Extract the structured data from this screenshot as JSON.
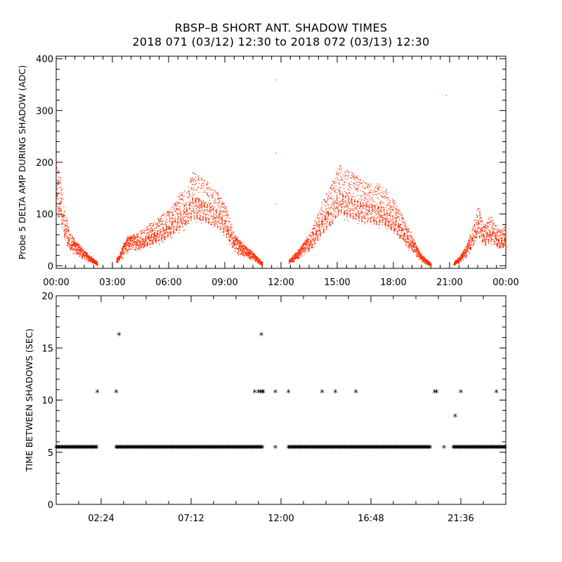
{
  "title": {
    "line1": "RBSP–B SHORT ANT. SHADOW TIMES",
    "line2": "2018 071 (03/12) 12:30 to 2018 072 (03/13) 12:30"
  },
  "colors": {
    "top_points": "#ff2a00",
    "bottom_points": "#000000",
    "axes": "#000000"
  },
  "chart_data": [
    {
      "type": "scatter",
      "ylabel": "Probe 5 DELTA AMP DURING SHADOW (ADC)",
      "xlabel": "",
      "xlim_hours": [
        0,
        24
      ],
      "ylim": [
        -5,
        405
      ],
      "x_tick_labels": [
        "00:00",
        "03:00",
        "06:00",
        "09:00",
        "12:00",
        "15:00",
        "18:00",
        "21:00",
        "00:00"
      ],
      "x_tick_hours": [
        0,
        3,
        6,
        9,
        12,
        15,
        18,
        21,
        24
      ],
      "y_ticks": [
        0,
        100,
        200,
        300,
        400
      ],
      "y_tick_labels": [
        "0",
        "100",
        "200",
        "300",
        "400"
      ],
      "point_color": "#ff2a00",
      "series": [
        {
          "description_points_hours_values": "band envelope samples",
          "points": [
            [
              0.0,
              205
            ],
            [
              0.15,
              180
            ],
            [
              0.3,
              150
            ],
            [
              0.45,
              110
            ],
            [
              0.6,
              80
            ],
            [
              0.8,
              60
            ],
            [
              1.0,
              48
            ],
            [
              1.2,
              40
            ],
            [
              1.4,
              32
            ],
            [
              1.6,
              25
            ],
            [
              1.8,
              18
            ],
            [
              2.0,
              12
            ],
            [
              2.2,
              5
            ],
            [
              3.2,
              12
            ],
            [
              3.4,
              25
            ],
            [
              3.6,
              45
            ],
            [
              3.8,
              55
            ],
            [
              4.2,
              60
            ],
            [
              4.6,
              70
            ],
            [
              5.0,
              80
            ],
            [
              5.5,
              95
            ],
            [
              6.0,
              110
            ],
            [
              6.5,
              135
            ],
            [
              7.0,
              160
            ],
            [
              7.3,
              185
            ],
            [
              7.6,
              175
            ],
            [
              8.0,
              165
            ],
            [
              8.5,
              150
            ],
            [
              9.0,
              120
            ],
            [
              9.5,
              60
            ],
            [
              10.0,
              40
            ],
            [
              10.5,
              25
            ],
            [
              11.0,
              5
            ],
            [
              12.4,
              10
            ],
            [
              12.8,
              25
            ],
            [
              13.2,
              45
            ],
            [
              13.6,
              70
            ],
            [
              14.0,
              105
            ],
            [
              14.4,
              140
            ],
            [
              14.8,
              170
            ],
            [
              15.1,
              200
            ],
            [
              15.4,
              190
            ],
            [
              16.0,
              175
            ],
            [
              16.5,
              165
            ],
            [
              17.0,
              160
            ],
            [
              17.5,
              155
            ],
            [
              18.0,
              130
            ],
            [
              18.5,
              95
            ],
            [
              19.0,
              55
            ],
            [
              19.5,
              20
            ],
            [
              20.0,
              3
            ],
            [
              21.2,
              5
            ],
            [
              21.6,
              20
            ],
            [
              22.0,
              50
            ],
            [
              22.3,
              90
            ],
            [
              22.5,
              120
            ],
            [
              22.8,
              80
            ],
            [
              23.2,
              95
            ],
            [
              23.6,
              70
            ],
            [
              24.0,
              75
            ]
          ]
        }
      ]
    },
    {
      "type": "scatter",
      "ylabel": "TIME BETWEEN SHADOWS (SEC)",
      "xlabel": "",
      "xlim_hours": [
        0,
        24
      ],
      "ylim": [
        0,
        20
      ],
      "x_tick_labels": [
        "02:24",
        "07:12",
        "12:00",
        "16:48",
        "21:36"
      ],
      "x_tick_hours": [
        2.4,
        7.2,
        12.0,
        16.8,
        21.6
      ],
      "y_ticks": [
        0,
        5,
        10,
        15,
        20
      ],
      "y_tick_labels": [
        "0",
        "5",
        "10",
        "15",
        "20"
      ],
      "point_color": "#000000",
      "marker": "*",
      "baseline_value": 5.4,
      "baseline_segments_hours": [
        [
          0.0,
          2.2
        ],
        [
          3.2,
          11.0
        ],
        [
          12.4,
          20.0
        ],
        [
          21.2,
          24.0
        ]
      ],
      "outliers": [
        [
          2.2,
          10.7
        ],
        [
          3.2,
          10.7
        ],
        [
          3.35,
          16.2
        ],
        [
          10.6,
          10.7
        ],
        [
          10.8,
          10.7
        ],
        [
          10.9,
          10.7
        ],
        [
          11.0,
          10.7
        ],
        [
          11.05,
          10.7
        ],
        [
          10.95,
          16.2
        ],
        [
          11.7,
          10.7
        ],
        [
          11.7,
          5.4
        ],
        [
          12.4,
          10.7
        ],
        [
          14.2,
          10.7
        ],
        [
          14.9,
          10.7
        ],
        [
          16.0,
          10.7
        ],
        [
          20.2,
          10.7
        ],
        [
          20.3,
          10.7
        ],
        [
          20.7,
          5.4
        ],
        [
          21.3,
          8.4
        ],
        [
          21.6,
          10.7
        ],
        [
          23.5,
          10.7
        ]
      ]
    }
  ]
}
